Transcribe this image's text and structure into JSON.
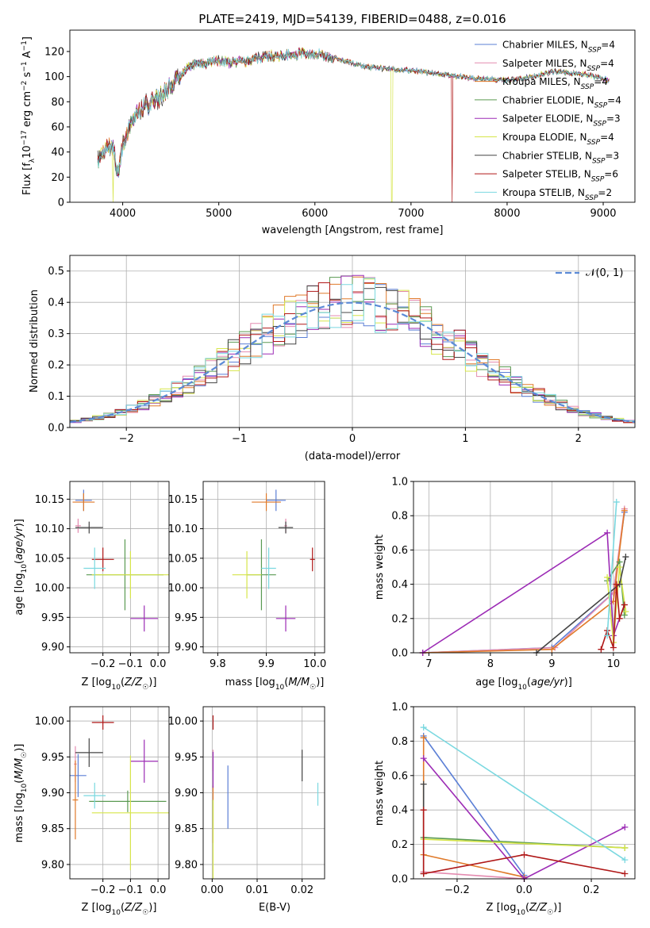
{
  "colors": {
    "Chabrier MILES": "#5b7fd6",
    "Salpeter MILES": "#e48bb0",
    "Kroupa MILES": "#e07a2a",
    "Chabrier ELODIE": "#5a9a52",
    "Salpeter ELODIE": "#9c2bb5",
    "Kroupa ELODIE": "#d6e54a",
    "Chabrier STELIB": "#444444",
    "Salpeter STELIB": "#b01818",
    "Kroupa STELIB": "#7ad8e0",
    "normal": "#5b8ad6"
  },
  "legend_sup": "SSP",
  "chart_data": [
    {
      "id": "spectrum",
      "type": "line",
      "title": "PLATE=2419, MJD=54139, FIBERID=0488, z=0.016",
      "xlabel": "wavelength [Angstrom, rest frame]",
      "ylabel": "Flux [f_λ 10^-17 erg cm^-2 s^-1 A^-1]",
      "xlim": [
        3450,
        9330
      ],
      "ylim": [
        0,
        137
      ],
      "xticks": [
        4000,
        5000,
        6000,
        7000,
        8000,
        9000
      ],
      "yticks": [
        0,
        20,
        40,
        60,
        80,
        100,
        120
      ],
      "grid": false,
      "legend_position": "top-right",
      "continuum": {
        "x": [
          3740,
          3780,
          3850,
          3900,
          3950,
          4000,
          4100,
          4200,
          4300,
          4400,
          4500,
          4600,
          4700,
          4800,
          5000,
          5200,
          5500,
          5800,
          6000,
          6200,
          6500,
          6800,
          7000,
          7200,
          7500,
          7800,
          8000,
          8200,
          8500,
          8800,
          9060
        ],
        "y": [
          32,
          38,
          45,
          42,
          25,
          45,
          65,
          75,
          80,
          85,
          93,
          100,
          108,
          110,
          112,
          111,
          116,
          118,
          118,
          115,
          108,
          106,
          105,
          103,
          100,
          98,
          97,
          99,
          104,
          102,
          97
        ]
      },
      "series": [
        {
          "name": "Chabrier MILES",
          "n": 4
        },
        {
          "name": "Salpeter MILES",
          "n": 4
        },
        {
          "name": "Kroupa MILES",
          "n": 4
        },
        {
          "name": "Chabrier ELODIE",
          "n": 4
        },
        {
          "name": "Salpeter ELODIE",
          "n": 3
        },
        {
          "name": "Kroupa ELODIE",
          "n": 4
        },
        {
          "name": "Chabrier STELIB",
          "n": 3
        },
        {
          "name": "Salpeter STELIB",
          "n": 6
        },
        {
          "name": "Kroupa STELIB",
          "n": 2
        }
      ],
      "dropouts": [
        {
          "series": "Kroupa ELODIE",
          "x": 3900
        },
        {
          "series": "Kroupa ELODIE",
          "x": 6800
        },
        {
          "series": "Salpeter STELIB",
          "x": 7430
        }
      ]
    },
    {
      "id": "residuals",
      "type": "line",
      "xlabel": "(data-model)/error",
      "ylabel": "Normed distribution",
      "xlim": [
        -2.5,
        2.5
      ],
      "ylim": [
        0,
        0.55
      ],
      "xticks": [
        -2,
        -1,
        0,
        1,
        2
      ],
      "yticks": [
        0.0,
        0.1,
        0.2,
        0.3,
        0.4,
        0.5
      ],
      "grid": true,
      "legend_position": "top-right",
      "legend_label": "𝒩(0, 1)",
      "bin_width": 0.1
    },
    {
      "id": "age_vs_Z",
      "type": "scatter",
      "xlabel": "Z [log10(Z/Z☉)]",
      "ylabel": "age  [log10(age/yr)]",
      "xlim": [
        -0.32,
        0.04
      ],
      "ylim": [
        9.89,
        10.18
      ],
      "xticks": [
        -0.2,
        -0.1,
        0.0
      ],
      "yticks": [
        9.9,
        9.95,
        10.0,
        10.05,
        10.1,
        10.15
      ],
      "grid": true,
      "points": [
        {
          "series": "Chabrier MILES",
          "x": -0.27,
          "y": 10.148,
          "xerr": 0.03,
          "yerr": 0.018
        },
        {
          "series": "Salpeter MILES",
          "x": -0.29,
          "y": 10.105,
          "xerr": 0.01,
          "yerr": 0.012
        },
        {
          "series": "Kroupa MILES",
          "x": -0.27,
          "y": 10.145,
          "xerr": 0.04,
          "yerr": 0.015
        },
        {
          "series": "Chabrier ELODIE",
          "x": -0.12,
          "y": 10.022,
          "xerr": 0.14,
          "yerr": 0.06
        },
        {
          "series": "Salpeter ELODIE",
          "x": -0.05,
          "y": 9.948,
          "xerr": 0.05,
          "yerr": 0.022
        },
        {
          "series": "Kroupa ELODIE",
          "x": -0.1,
          "y": 10.022,
          "xerr": 0.14,
          "yerr": 0.04
        },
        {
          "series": "Chabrier STELIB",
          "x": -0.25,
          "y": 10.102,
          "xerr": 0.05,
          "yerr": 0.01
        },
        {
          "series": "Salpeter STELIB",
          "x": -0.2,
          "y": 10.048,
          "xerr": 0.04,
          "yerr": 0.02
        },
        {
          "series": "Kroupa STELIB",
          "x": -0.23,
          "y": 10.033,
          "xerr": 0.04,
          "yerr": 0.035
        }
      ]
    },
    {
      "id": "age_vs_mass",
      "type": "scatter",
      "xlabel": "mass [log10(M/M☉)]",
      "ylabel": "",
      "xlim": [
        9.77,
        10.02
      ],
      "ylim": [
        9.89,
        10.18
      ],
      "xticks": [
        9.8,
        9.9,
        10.0
      ],
      "yticks": [
        9.9,
        9.95,
        10.0,
        10.05,
        10.1,
        10.15
      ],
      "grid": true,
      "points": [
        {
          "series": "Chabrier MILES",
          "x": 9.92,
          "y": 10.148,
          "xerr": 0.02,
          "yerr": 0.018
        },
        {
          "series": "Salpeter MILES",
          "x": 9.94,
          "y": 10.105,
          "xerr": 0.003,
          "yerr": 0.012
        },
        {
          "series": "Kroupa MILES",
          "x": 9.9,
          "y": 10.145,
          "xerr": 0.03,
          "yerr": 0.015
        },
        {
          "series": "Chabrier ELODIE",
          "x": 9.89,
          "y": 10.022,
          "xerr": 0.03,
          "yerr": 0.06
        },
        {
          "series": "Salpeter ELODIE",
          "x": 9.94,
          "y": 9.948,
          "xerr": 0.02,
          "yerr": 0.022
        },
        {
          "series": "Kroupa ELODIE",
          "x": 9.86,
          "y": 10.022,
          "xerr": 0.03,
          "yerr": 0.04
        },
        {
          "series": "Chabrier STELIB",
          "x": 9.94,
          "y": 10.102,
          "xerr": 0.015,
          "yerr": 0.01
        },
        {
          "series": "Salpeter STELIB",
          "x": 9.995,
          "y": 10.048,
          "xerr": 0.005,
          "yerr": 0.02
        },
        {
          "series": "Kroupa STELIB",
          "x": 9.905,
          "y": 10.033,
          "xerr": 0.015,
          "yerr": 0.035
        }
      ]
    },
    {
      "id": "weight_vs_age",
      "type": "line",
      "xlabel": "age  [log10(age/yr)]",
      "ylabel": "mass weight",
      "xlim": [
        6.75,
        10.35
      ],
      "ylim": [
        0,
        1
      ],
      "xticks": [
        7,
        8,
        9,
        10
      ],
      "yticks": [
        0.0,
        0.2,
        0.4,
        0.6,
        0.8,
        1.0
      ],
      "grid": true,
      "series": [
        {
          "name": "Chabrier MILES",
          "x": [
            6.9,
            9.0,
            10.0,
            10.18
          ],
          "y": [
            0.0,
            0.03,
            0.35,
            0.82
          ]
        },
        {
          "name": "Salpeter MILES",
          "x": [
            6.9,
            9.05,
            10.0,
            10.18
          ],
          "y": [
            0.0,
            0.03,
            0.35,
            0.84
          ]
        },
        {
          "name": "Kroupa MILES",
          "x": [
            6.9,
            9.0,
            10.0,
            10.18
          ],
          "y": [
            0.0,
            0.02,
            0.3,
            0.83
          ]
        },
        {
          "name": "Chabrier ELODIE",
          "x": [
            9.9,
            10.1,
            10.18
          ],
          "y": [
            0.42,
            0.53,
            0.22
          ]
        },
        {
          "name": "Salpeter ELODIE",
          "x": [
            6.9,
            9.9,
            10.0,
            10.18
          ],
          "y": [
            0.0,
            0.7,
            0.1,
            0.28
          ]
        },
        {
          "name": "Kroupa ELODIE",
          "x": [
            9.9,
            10.0,
            10.1,
            10.2
          ],
          "y": [
            0.44,
            0.06,
            0.5,
            0.24
          ]
        },
        {
          "name": "Chabrier STELIB",
          "x": [
            8.75,
            10.1,
            10.2
          ],
          "y": [
            0.0,
            0.4,
            0.56
          ]
        },
        {
          "name": "Salpeter STELIB",
          "x": [
            9.8,
            9.9,
            10.0,
            10.05,
            10.1,
            10.18
          ],
          "y": [
            0.02,
            0.13,
            0.03,
            0.4,
            0.2,
            0.28
          ]
        },
        {
          "name": "Kroupa STELIB",
          "x": [
            9.9,
            10.05
          ],
          "y": [
            0.1,
            0.88
          ]
        }
      ]
    },
    {
      "id": "mass_vs_Z",
      "type": "scatter",
      "xlabel": "Z [log10(Z/Z☉)]",
      "ylabel": "mass [log10(M/M☉)]",
      "xlim": [
        -0.32,
        0.04
      ],
      "ylim": [
        9.78,
        10.02
      ],
      "xticks": [
        -0.2,
        -0.1,
        0.0
      ],
      "yticks": [
        9.8,
        9.85,
        9.9,
        9.95,
        10.0
      ],
      "grid": true,
      "points": [
        {
          "series": "Chabrier MILES",
          "x": -0.29,
          "y": 9.924,
          "xerr": 0.03,
          "yerr": 0.03
        },
        {
          "series": "Salpeter MILES",
          "x": -0.3,
          "y": 9.94,
          "xerr": 0.005,
          "yerr": 0.025
        },
        {
          "series": "Kroupa MILES",
          "x": -0.3,
          "y": 9.89,
          "xerr": 0.01,
          "yerr": 0.055
        },
        {
          "series": "Chabrier ELODIE",
          "x": -0.11,
          "y": 9.888,
          "xerr": 0.14,
          "yerr": 0.015
        },
        {
          "series": "Salpeter ELODIE",
          "x": -0.05,
          "y": 9.944,
          "xerr": 0.05,
          "yerr": 0.03
        },
        {
          "series": "Kroupa ELODIE",
          "x": -0.1,
          "y": 9.872,
          "xerr": 0.14,
          "yerr": 0.08
        },
        {
          "series": "Chabrier STELIB",
          "x": -0.25,
          "y": 9.956,
          "xerr": 0.05,
          "yerr": 0.02
        },
        {
          "series": "Salpeter STELIB",
          "x": -0.2,
          "y": 9.998,
          "xerr": 0.04,
          "yerr": 0.01
        },
        {
          "series": "Kroupa STELIB",
          "x": -0.23,
          "y": 9.896,
          "xerr": 0.04,
          "yerr": 0.018
        }
      ]
    },
    {
      "id": "mass_vs_EBV",
      "type": "scatter",
      "xlabel": "E(B-V)",
      "ylabel": "",
      "xlim": [
        -0.002,
        0.025
      ],
      "ylim": [
        9.78,
        10.02
      ],
      "xticks": [
        0.0,
        0.01,
        0.02
      ],
      "yticks": [
        9.8,
        9.85,
        9.9,
        9.95,
        10.0
      ],
      "grid": true,
      "points": [
        {
          "series": "Chabrier MILES",
          "x": 0.0035,
          "y": 9.894,
          "yerr": 0.044
        },
        {
          "series": "Salpeter MILES",
          "x": 0.0002,
          "y": 9.945,
          "yerr": 0.015
        },
        {
          "series": "Kroupa MILES",
          "x": 0.0002,
          "y": 9.87,
          "yerr": 0.04
        },
        {
          "series": "Chabrier ELODIE",
          "x": 0.0002,
          "y": 9.87,
          "yerr": 0.02
        },
        {
          "series": "Salpeter ELODIE",
          "x": 0.0002,
          "y": 9.932,
          "yerr": 0.025
        },
        {
          "series": "Kroupa ELODIE",
          "x": 0.0002,
          "y": 9.835,
          "yerr": 0.055
        },
        {
          "series": "Chabrier STELIB",
          "x": 0.02,
          "y": 9.938,
          "yerr": 0.022
        },
        {
          "series": "Salpeter STELIB",
          "x": 0.0002,
          "y": 9.998,
          "yerr": 0.01
        },
        {
          "series": "Kroupa STELIB",
          "x": 0.0235,
          "y": 9.898,
          "yerr": 0.016
        }
      ]
    },
    {
      "id": "weight_vs_Z",
      "type": "line",
      "xlabel": "Z [log10(Z/Z☉)]",
      "ylabel": "mass weight",
      "xlim": [
        -0.33,
        0.33
      ],
      "ylim": [
        0,
        1
      ],
      "xticks": [
        -0.2,
        0.0,
        0.2
      ],
      "yticks": [
        0.0,
        0.2,
        0.4,
        0.6,
        0.8,
        1.0
      ],
      "grid": true,
      "series": [
        {
          "name": "Chabrier MILES",
          "x": [
            -0.3,
            0.0
          ],
          "y": [
            0.83,
            0.02
          ]
        },
        {
          "name": "Salpeter MILES",
          "x": [
            -0.3,
            0.0
          ],
          "y": [
            0.04,
            0.0
          ]
        },
        {
          "name": "Kroupa MILES",
          "x": [
            -0.3,
            -0.3,
            0.0
          ],
          "y": [
            0.82,
            0.14,
            0.01
          ]
        },
        {
          "name": "Chabrier ELODIE",
          "x": [
            -0.3,
            0.3
          ],
          "y": [
            0.24,
            0.18
          ]
        },
        {
          "name": "Salpeter ELODIE",
          "x": [
            -0.3,
            0.0,
            0.3
          ],
          "y": [
            0.7,
            0.0,
            0.3
          ]
        },
        {
          "name": "Kroupa ELODIE",
          "x": [
            -0.3,
            0.3
          ],
          "y": [
            0.23,
            0.18
          ]
        },
        {
          "name": "Chabrier STELIB",
          "x": [
            -0.3,
            -0.3
          ],
          "y": [
            0.55,
            0.03
          ]
        },
        {
          "name": "Salpeter STELIB",
          "x": [
            -0.3,
            -0.3,
            0.0,
            0.3
          ],
          "y": [
            0.4,
            0.03,
            0.14,
            0.03
          ]
        },
        {
          "name": "Kroupa STELIB",
          "x": [
            -0.3,
            0.3
          ],
          "y": [
            0.88,
            0.11
          ]
        }
      ]
    }
  ]
}
